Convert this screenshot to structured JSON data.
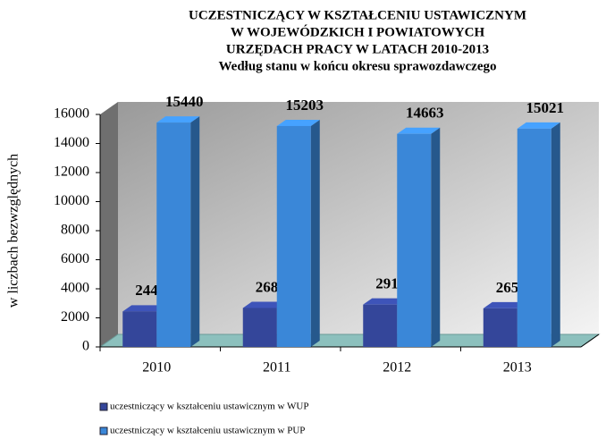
{
  "chart_data": {
    "type": "bar3d",
    "title": [
      "UCZESTNICZĄCY W KSZTAŁCENIU USTAWICZNYM",
      "W WOJEWÓDZKICH I POWIATOWYCH",
      "URZĘDACH PRACY W LATACH 2010-2013",
      "Według stanu w końcu okresu sprawozdawczego"
    ],
    "y_label": "w liczbach bezwzględnych",
    "categories": [
      "2010",
      "2011",
      "2012",
      "2013"
    ],
    "series": [
      {
        "name": "uczestniczący w kształceniu ustawicznym w WUP",
        "color": "#34469a",
        "values": [
          2442,
          2680,
          2913,
          2651
        ]
      },
      {
        "name": "uczestniczący w kształceniu ustawicznym w PUP",
        "color": "#3a87d8",
        "values": [
          15440,
          15203,
          14663,
          15021
        ]
      }
    ],
    "ylim": [
      0,
      16000
    ],
    "yticks": [
      0,
      2000,
      4000,
      6000,
      8000,
      10000,
      12000,
      14000,
      16000
    ]
  }
}
